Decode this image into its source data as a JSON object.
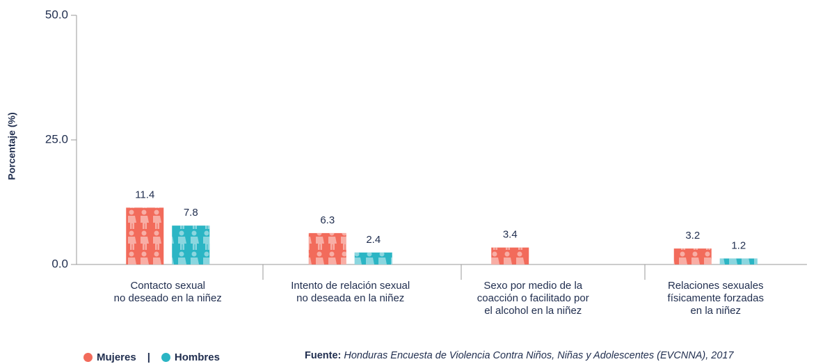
{
  "chart_data": {
    "type": "bar",
    "y_label": "Porcentaje (%)",
    "categories": [
      "Contacto sexual\nno deseado en la niñez",
      "Intento de relación sexual\nno deseada en la niñez",
      "Sexo por medio de la\ncoacción o facilitado por\nel alcohol en la niñez",
      "Relaciones sexuales\nfísicamente forzadas\nen la niñez"
    ],
    "series": [
      {
        "name": "Mujeres",
        "color": "#f26b5b",
        "values": [
          11.4,
          6.3,
          3.4,
          3.2
        ]
      },
      {
        "name": "Hombres",
        "color": "#2bb5c4",
        "values": [
          7.8,
          2.4,
          null,
          1.2
        ]
      }
    ],
    "ylim": [
      0,
      50
    ],
    "yticks": [
      {
        "value": 0,
        "label": "0.0"
      },
      {
        "value": 25,
        "label": "25.0"
      },
      {
        "value": 50,
        "label": "50.0"
      }
    ],
    "legend": "bottom-left",
    "source_label": "Fuente:",
    "source": "Honduras Encuesta de Violencia Contra Niños, Niñas y Adolescentes (EVCNNA), 2017"
  }
}
